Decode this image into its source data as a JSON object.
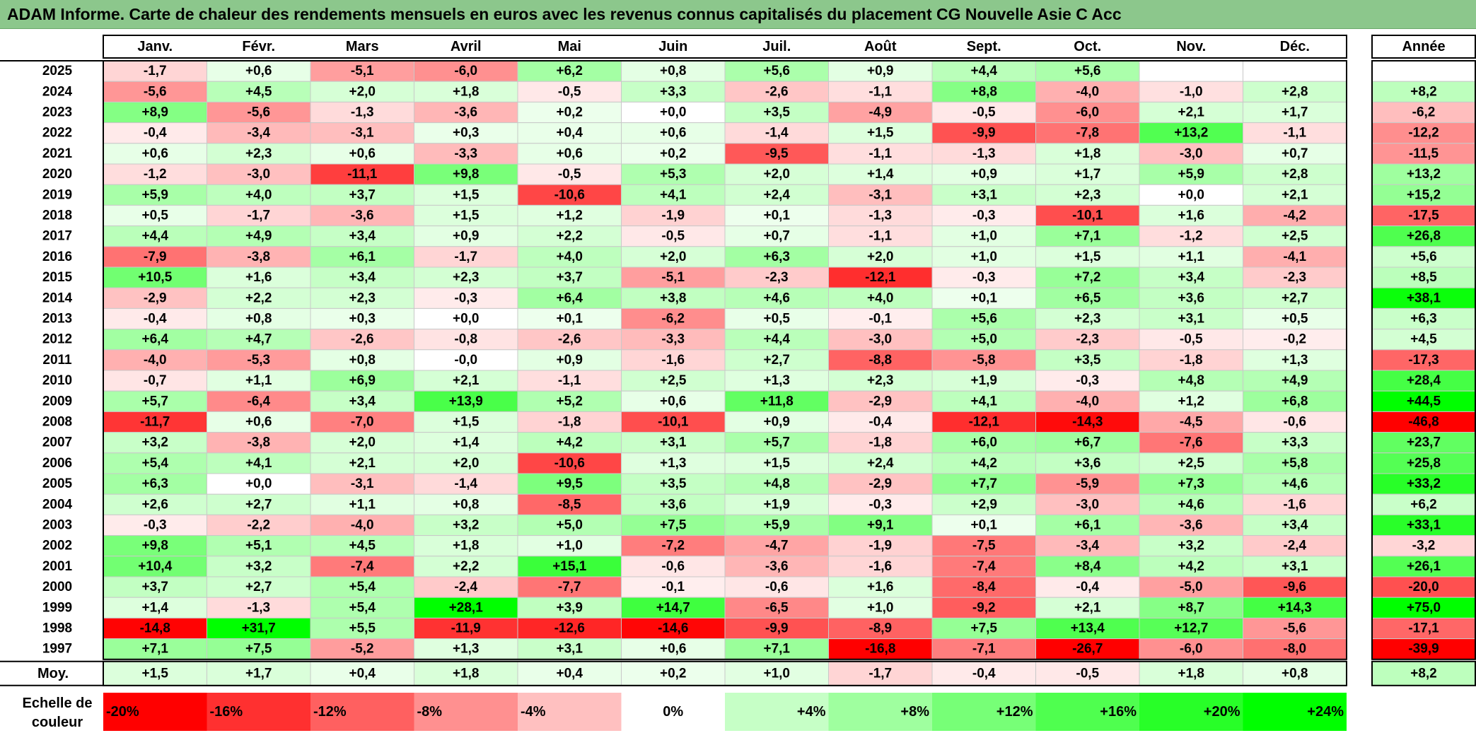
{
  "title": "ADAM Informe. Carte de chaleur des rendements mensuels en euros avec les revenus connus capitalisés du placement CG Nouvelle Asie C Acc",
  "colors": {
    "negative_max": "#ff0000",
    "positive_max": "#00ff00",
    "neutral": "#ffffff",
    "title_bg": "#8cc78c"
  },
  "chart_data": {
    "type": "heatmap",
    "months": [
      "Janv.",
      "Févr.",
      "Mars",
      "Avril",
      "Mai",
      "Juin",
      "Juil.",
      "Août",
      "Sept.",
      "Oct.",
      "Nov.",
      "Déc."
    ],
    "year_header": "Année",
    "rows": [
      {
        "year": "2025",
        "months": [
          "-1,7",
          "+0,6",
          "-5,1",
          "-6,0",
          "+6,2",
          "+0,8",
          "+5,6",
          "+0,9",
          "+4,4",
          "+5,6",
          "",
          ""
        ],
        "annual": ""
      },
      {
        "year": "2024",
        "months": [
          "-5,6",
          "+4,5",
          "+2,0",
          "+1,8",
          "-0,5",
          "+3,3",
          "-2,6",
          "-1,1",
          "+8,8",
          "-4,0",
          "-1,0",
          "+2,8"
        ],
        "annual": "+8,2"
      },
      {
        "year": "2023",
        "months": [
          "+8,9",
          "-5,6",
          "-1,3",
          "-3,6",
          "+0,2",
          "+0,0",
          "+3,5",
          "-4,9",
          "-0,5",
          "-6,0",
          "+2,1",
          "+1,7"
        ],
        "annual": "-6,2"
      },
      {
        "year": "2022",
        "months": [
          "-0,4",
          "-3,4",
          "-3,1",
          "+0,3",
          "+0,4",
          "+0,6",
          "-1,4",
          "+1,5",
          "-9,9",
          "-7,8",
          "+13,2",
          "-1,1"
        ],
        "annual": "-12,2"
      },
      {
        "year": "2021",
        "months": [
          "+0,6",
          "+2,3",
          "+0,6",
          "-3,3",
          "+0,6",
          "+0,2",
          "-9,5",
          "-1,1",
          "-1,3",
          "+1,8",
          "-3,0",
          "+0,7"
        ],
        "annual": "-11,5"
      },
      {
        "year": "2020",
        "months": [
          "-1,2",
          "-3,0",
          "-11,1",
          "+9,8",
          "-0,5",
          "+5,3",
          "+2,0",
          "+1,4",
          "+0,9",
          "+1,7",
          "+5,9",
          "+2,8"
        ],
        "annual": "+13,2"
      },
      {
        "year": "2019",
        "months": [
          "+5,9",
          "+4,0",
          "+3,7",
          "+1,5",
          "-10,6",
          "+4,1",
          "+2,4",
          "-3,1",
          "+3,1",
          "+2,3",
          "+0,0",
          "+2,1"
        ],
        "annual": "+15,2"
      },
      {
        "year": "2018",
        "months": [
          "+0,5",
          "-1,7",
          "-3,6",
          "+1,5",
          "+1,2",
          "-1,9",
          "+0,1",
          "-1,3",
          "-0,3",
          "-10,1",
          "+1,6",
          "-4,2"
        ],
        "annual": "-17,5"
      },
      {
        "year": "2017",
        "months": [
          "+4,4",
          "+4,9",
          "+3,4",
          "+0,9",
          "+2,2",
          "-0,5",
          "+0,7",
          "-1,1",
          "+1,0",
          "+7,1",
          "-1,2",
          "+2,5"
        ],
        "annual": "+26,8"
      },
      {
        "year": "2016",
        "months": [
          "-7,9",
          "-3,8",
          "+6,1",
          "-1,7",
          "+4,0",
          "+2,0",
          "+6,3",
          "+2,0",
          "+1,0",
          "+1,5",
          "+1,1",
          "-4,1"
        ],
        "annual": "+5,6"
      },
      {
        "year": "2015",
        "months": [
          "+10,5",
          "+1,6",
          "+3,4",
          "+2,3",
          "+3,7",
          "-5,1",
          "-2,3",
          "-12,1",
          "-0,3",
          "+7,2",
          "+3,4",
          "-2,3"
        ],
        "annual": "+8,5"
      },
      {
        "year": "2014",
        "months": [
          "-2,9",
          "+2,2",
          "+2,3",
          "-0,3",
          "+6,4",
          "+3,8",
          "+4,6",
          "+4,0",
          "+0,1",
          "+6,5",
          "+3,6",
          "+2,7"
        ],
        "annual": "+38,1"
      },
      {
        "year": "2013",
        "months": [
          "-0,4",
          "+0,8",
          "+0,3",
          "+0,0",
          "+0,1",
          "-6,2",
          "+0,5",
          "-0,1",
          "+5,6",
          "+2,3",
          "+3,1",
          "+0,5"
        ],
        "annual": "+6,3"
      },
      {
        "year": "2012",
        "months": [
          "+6,4",
          "+4,7",
          "-2,6",
          "-0,8",
          "-2,6",
          "-3,3",
          "+4,4",
          "-3,0",
          "+5,0",
          "-2,3",
          "-0,5",
          "-0,2"
        ],
        "annual": "+4,5"
      },
      {
        "year": "2011",
        "months": [
          "-4,0",
          "-5,3",
          "+0,8",
          "-0,0",
          "+0,9",
          "-1,6",
          "+2,7",
          "-8,8",
          "-5,8",
          "+3,5",
          "-1,8",
          "+1,3"
        ],
        "annual": "-17,3"
      },
      {
        "year": "2010",
        "months": [
          "-0,7",
          "+1,1",
          "+6,9",
          "+2,1",
          "-1,1",
          "+2,5",
          "+1,3",
          "+2,3",
          "+1,9",
          "-0,3",
          "+4,8",
          "+4,9"
        ],
        "annual": "+28,4"
      },
      {
        "year": "2009",
        "months": [
          "+5,7",
          "-6,4",
          "+3,4",
          "+13,9",
          "+5,2",
          "+0,6",
          "+11,8",
          "-2,9",
          "+4,1",
          "-4,0",
          "+1,2",
          "+6,8"
        ],
        "annual": "+44,5"
      },
      {
        "year": "2008",
        "months": [
          "-11,7",
          "+0,6",
          "-7,0",
          "+1,5",
          "-1,8",
          "-10,1",
          "+0,9",
          "-0,4",
          "-12,1",
          "-14,3",
          "-4,5",
          "-0,6"
        ],
        "annual": "-46,8"
      },
      {
        "year": "2007",
        "months": [
          "+3,2",
          "-3,8",
          "+2,0",
          "+1,4",
          "+4,2",
          "+3,1",
          "+5,7",
          "-1,8",
          "+6,0",
          "+6,7",
          "-7,6",
          "+3,3"
        ],
        "annual": "+23,7"
      },
      {
        "year": "2006",
        "months": [
          "+5,4",
          "+4,1",
          "+2,1",
          "+2,0",
          "-10,6",
          "+1,3",
          "+1,5",
          "+2,4",
          "+4,2",
          "+3,6",
          "+2,5",
          "+5,8"
        ],
        "annual": "+25,8"
      },
      {
        "year": "2005",
        "months": [
          "+6,3",
          "+0,0",
          "-3,1",
          "-1,4",
          "+9,5",
          "+3,5",
          "+4,8",
          "-2,9",
          "+7,7",
          "-5,9",
          "+7,3",
          "+4,6"
        ],
        "annual": "+33,2"
      },
      {
        "year": "2004",
        "months": [
          "+2,6",
          "+2,7",
          "+1,1",
          "+0,8",
          "-8,5",
          "+3,6",
          "+1,9",
          "-0,3",
          "+2,9",
          "-3,0",
          "+4,6",
          "-1,6"
        ],
        "annual": "+6,2"
      },
      {
        "year": "2003",
        "months": [
          "-0,3",
          "-2,2",
          "-4,0",
          "+3,2",
          "+5,0",
          "+7,5",
          "+5,9",
          "+9,1",
          "+0,1",
          "+6,1",
          "-3,6",
          "+3,4"
        ],
        "annual": "+33,1"
      },
      {
        "year": "2002",
        "months": [
          "+9,8",
          "+5,1",
          "+4,5",
          "+1,8",
          "+1,0",
          "-7,2",
          "-4,7",
          "-1,9",
          "-7,5",
          "-3,4",
          "+3,2",
          "-2,4"
        ],
        "annual": "-3,2"
      },
      {
        "year": "2001",
        "months": [
          "+10,4",
          "+3,2",
          "-7,4",
          "+2,2",
          "+15,1",
          "-0,6",
          "-3,6",
          "-1,6",
          "-7,4",
          "+8,4",
          "+4,2",
          "+3,1"
        ],
        "annual": "+26,1"
      },
      {
        "year": "2000",
        "months": [
          "+3,7",
          "+2,7",
          "+5,4",
          "-2,4",
          "-7,7",
          "-0,1",
          "-0,6",
          "+1,6",
          "-8,4",
          "-0,4",
          "-5,0",
          "-9,6"
        ],
        "annual": "-20,0"
      },
      {
        "year": "1999",
        "months": [
          "+1,4",
          "-1,3",
          "+5,4",
          "+28,1",
          "+3,9",
          "+14,7",
          "-6,5",
          "+1,0",
          "-9,2",
          "+2,1",
          "+8,7",
          "+14,3"
        ],
        "annual": "+75,0"
      },
      {
        "year": "1998",
        "months": [
          "-14,8",
          "+31,7",
          "+5,5",
          "-11,9",
          "-12,6",
          "-14,6",
          "-9,9",
          "-8,9",
          "+7,5",
          "+13,4",
          "+12,7",
          "-5,6"
        ],
        "annual": "-17,1"
      },
      {
        "year": "1997",
        "months": [
          "+7,1",
          "+7,5",
          "-5,2",
          "+1,3",
          "+3,1",
          "+0,6",
          "+7,1",
          "-16,8",
          "-7,1",
          "-26,7",
          "-6,0",
          "-8,0"
        ],
        "annual": "-39,9"
      }
    ],
    "average": {
      "label": "Moy.",
      "months": [
        "+1,5",
        "+1,7",
        "+0,4",
        "+1,8",
        "+0,4",
        "+0,2",
        "+1,0",
        "-1,7",
        "-0,4",
        "-0,5",
        "+1,8",
        "+0,8"
      ],
      "annual": "+8,2"
    },
    "color_scale": {
      "label_line1": "Echelle de",
      "label_line2": "couleur",
      "steps": [
        "-20%",
        "-16%",
        "-12%",
        "-8%",
        "-4%",
        "0%",
        "+4%",
        "+8%",
        "+12%",
        "+16%",
        "+20%",
        "+24%"
      ]
    }
  }
}
